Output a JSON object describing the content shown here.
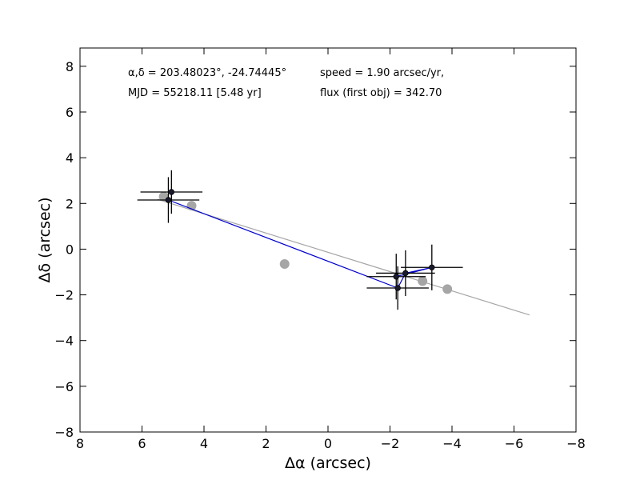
{
  "chart_data": {
    "type": "scatter",
    "xlabel": "Δα (arcsec)",
    "ylabel": "Δδ (arcsec)",
    "xlim": [
      8,
      -8
    ],
    "ylim": [
      -8,
      8.8
    ],
    "x_ticks": [
      8,
      6,
      4,
      2,
      0,
      -2,
      -4,
      -6,
      -8
    ],
    "y_ticks": [
      8,
      6,
      4,
      2,
      0,
      -2,
      -4,
      -6,
      -8
    ],
    "x_tick_labels": [
      "8",
      "6",
      "4",
      "2",
      "0",
      "−2",
      "−4",
      "−6",
      "−8"
    ],
    "y_tick_labels": [
      "8",
      "6",
      "4",
      "2",
      "0",
      "−2",
      "−4",
      "−6",
      "−8"
    ],
    "annotations": {
      "coords": "α,δ = 203.48023°, -24.74445°",
      "mjd": "MJD = 55218.11 [5.48 yr]",
      "speed": "speed = 1.90 arcsec/yr,",
      "flux": "flux (first obj) = 342.70"
    },
    "series": [
      {
        "name": "model_positions",
        "marker": "circle",
        "color": "#a6a6a6",
        "x": [
          5.3,
          4.4,
          1.4,
          -3.05,
          -3.85
        ],
        "y": [
          2.3,
          1.9,
          -0.65,
          -1.4,
          -1.75
        ]
      },
      {
        "name": "fit_line",
        "style": "line",
        "color": "#a6a6a6",
        "x": [
          5.5,
          -6.5
        ],
        "y": [
          2.18,
          -2.88
        ]
      },
      {
        "name": "observed_positions",
        "marker": "circle",
        "color": "#1a1a2e",
        "x": [
          5.05,
          5.15,
          -2.2,
          -2.5,
          -3.35,
          -2.25
        ],
        "y": [
          2.5,
          2.15,
          -1.2,
          -1.05,
          -0.8,
          -1.7
        ],
        "xerr": [
          1.0,
          1.0,
          0.95,
          0.95,
          1.0,
          1.0
        ],
        "yerr": [
          0.95,
          1.0,
          1.0,
          1.0,
          1.0,
          0.95
        ]
      },
      {
        "name": "track",
        "style": "line",
        "color": "#0000cc",
        "x": [
          5.15,
          -2.25,
          -2.5,
          -3.35,
          -2.2
        ],
        "y": [
          2.15,
          -1.7,
          -1.05,
          -0.8,
          -1.2
        ]
      }
    ]
  }
}
